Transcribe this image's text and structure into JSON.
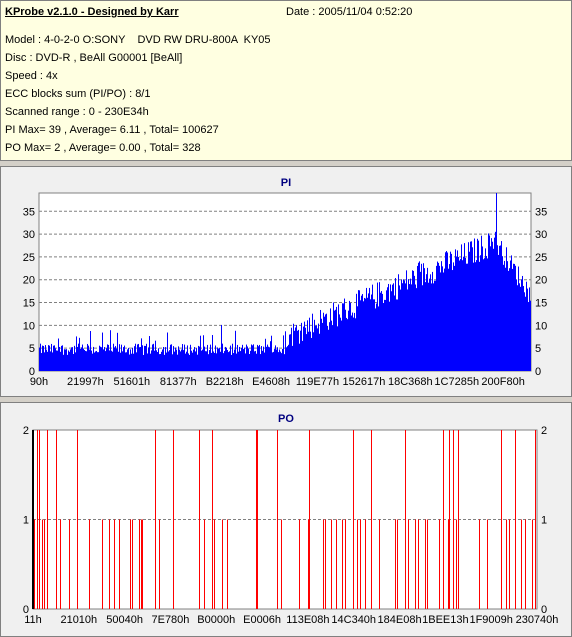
{
  "header": {
    "title": "KProbe v2.1.0 - Designed by Karr",
    "date": "Date : 2005/11/04 0:52:20",
    "lines": [
      "Model : 4-0-2-0 O:SONY    DVD RW DRU-800A  KY05",
      "Disc : DVD-R , BeAll G00001 [BeAll]",
      "Speed : 4x",
      "ECC blocks sum (PI/PO) : 8/1",
      "Scanned range : 0 - 230E34h",
      "PI Max= 39 , Average= 6.11 , Total= 100627",
      "PO Max= 2 , Average= 0.00 , Total= 328"
    ]
  },
  "colors": {
    "pi_fill": "#0000ff",
    "po_line": "#ff0000",
    "title": "#000080",
    "header_bg": "#ffffe1"
  },
  "chart_data": [
    {
      "type": "bar",
      "title": "PI",
      "xlabel": "",
      "ylabel": "",
      "ylim": [
        0,
        39
      ],
      "yticks": [
        0,
        5,
        10,
        15,
        20,
        25,
        30,
        35
      ],
      "x_tick_labels": [
        "90h",
        "21997h",
        "51601h",
        "81377h",
        "B2218h",
        "E4608h",
        "119E77h",
        "152617h",
        "18C368h",
        "1C7285h",
        "200F80h"
      ],
      "grid": true,
      "series": [
        {
          "max": 39,
          "average": 6.11,
          "total": 100627
        }
      ]
    },
    {
      "type": "bar",
      "title": "PO",
      "xlabel": "",
      "ylabel": "",
      "ylim": [
        0,
        2
      ],
      "yticks": [
        0,
        1,
        2
      ],
      "x_tick_labels": [
        "11h",
        "21010h",
        "50040h",
        "7E780h",
        "B0000h",
        "E0006h",
        "113E08h",
        "14C340h",
        "184E08h",
        "1BEE13h",
        "1F9009h",
        "230740h"
      ],
      "grid": true,
      "series": [
        {
          "max": 2,
          "average": 0.0,
          "total": 328
        }
      ]
    }
  ]
}
